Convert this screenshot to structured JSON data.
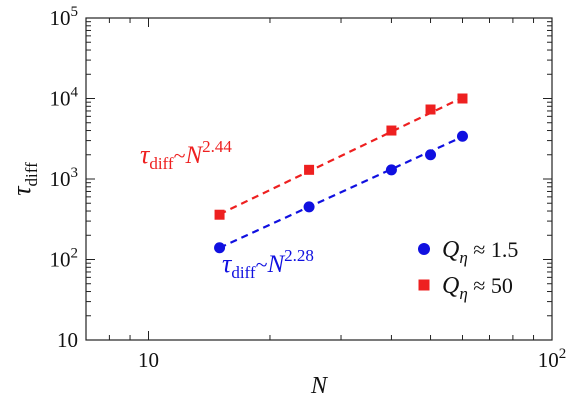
{
  "chart_data": {
    "type": "scatter",
    "x_scale": "log",
    "y_scale": "log",
    "xlim": [
      7,
      100
    ],
    "ylim": [
      10,
      100000
    ],
    "x_ticks": [
      10,
      100
    ],
    "y_ticks": [
      10,
      100,
      1000,
      10000,
      100000
    ],
    "x_tick_labels": [
      {
        "base": "10",
        "exp": ""
      },
      {
        "base": "10",
        "exp": "2"
      }
    ],
    "y_tick_labels": [
      {
        "base": "10",
        "exp": ""
      },
      {
        "base": "10",
        "exp": "2"
      },
      {
        "base": "10",
        "exp": "3"
      },
      {
        "base": "10",
        "exp": "4"
      },
      {
        "base": "10",
        "exp": "5"
      }
    ],
    "xlabel": "N",
    "ylabel": {
      "main": "τ",
      "sub": "diff"
    },
    "grid": false,
    "legend_position": "bottom-right",
    "series": [
      {
        "name": {
          "main": "Q",
          "sub": "η",
          "rest": " ≈ 1.5"
        },
        "color": "#1010e0",
        "marker": "circle",
        "x": [
          15,
          25,
          40,
          50,
          60
        ],
        "y": [
          140,
          450,
          1300,
          2000,
          3400
        ],
        "fit": {
          "x_range": [
            15,
            60
          ],
          "y_range": [
            140,
            3350
          ],
          "annotation": {
            "main": "τ",
            "sub": "diff",
            "mid": "~",
            "base": "N",
            "exp": "2.28"
          }
        }
      },
      {
        "name": {
          "main": "Q",
          "sub": "η",
          "rest": " ≈ 50"
        },
        "color": "#ee2020",
        "marker": "square",
        "x": [
          15,
          25,
          40,
          50,
          60
        ],
        "y": [
          360,
          1300,
          4000,
          7300,
          10000
        ],
        "fit": {
          "x_range": [
            15,
            60
          ],
          "y_range": [
            365,
            10260
          ],
          "annotation": {
            "main": "τ",
            "sub": "diff",
            "mid": "~",
            "base": "N",
            "exp": "2.44"
          }
        }
      }
    ]
  }
}
